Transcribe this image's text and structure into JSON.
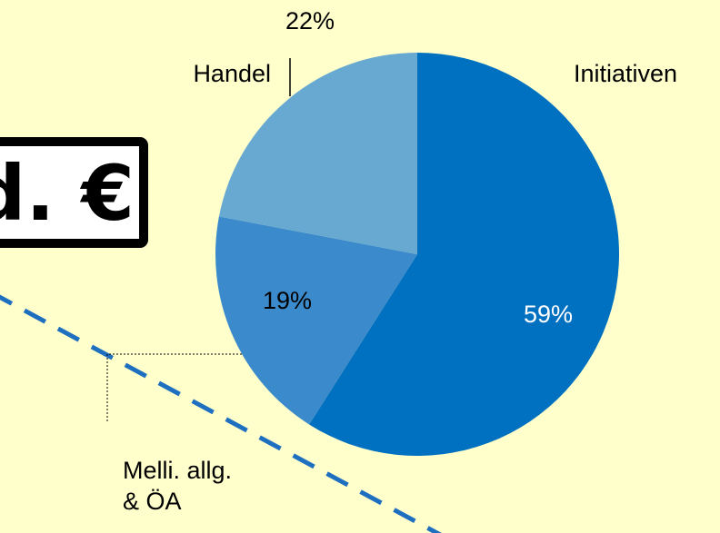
{
  "chart_data": {
    "type": "pie",
    "annotation": "d. €",
    "categories": [
      "Initiativen",
      "Melli. allg.\n& ÖA",
      "Handel"
    ],
    "values": [
      59,
      19,
      22
    ],
    "value_labels": [
      "59%",
      "19%",
      "22%"
    ],
    "colors": [
      "#0070c0",
      "#3b8acb",
      "#68a9d2"
    ],
    "label_colors": [
      "#ffffff",
      "#000000",
      "#000000"
    ]
  }
}
